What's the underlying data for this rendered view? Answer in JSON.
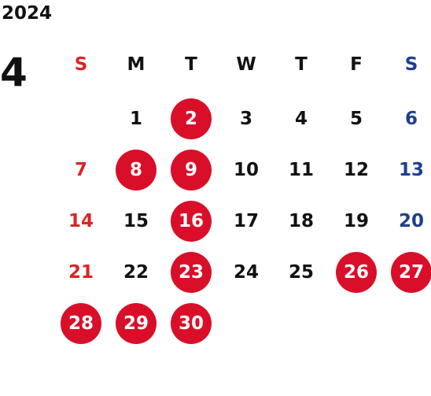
{
  "year": "2024",
  "month": "4",
  "colors": {
    "sunday": "#d92525",
    "saturday": "#1e3f8f",
    "weekday": "#111111",
    "holiday_circle": "#d90f2a",
    "holiday_text": "#ffffff"
  },
  "weekdays": [
    "S",
    "M",
    "T",
    "W",
    "T",
    "F",
    "S"
  ],
  "weeks": [
    [
      null,
      "1",
      "2",
      "3",
      "4",
      "5",
      "6"
    ],
    [
      "7",
      "8",
      "9",
      "10",
      "11",
      "12",
      "13"
    ],
    [
      "14",
      "15",
      "16",
      "17",
      "18",
      "19",
      "20"
    ],
    [
      "21",
      "22",
      "23",
      "24",
      "25",
      "26",
      "27"
    ],
    [
      "28",
      "29",
      "30",
      null,
      null,
      null,
      null
    ]
  ],
  "highlighted_days": [
    "2",
    "8",
    "9",
    "16",
    "23",
    "26",
    "27",
    "28",
    "29",
    "30"
  ]
}
